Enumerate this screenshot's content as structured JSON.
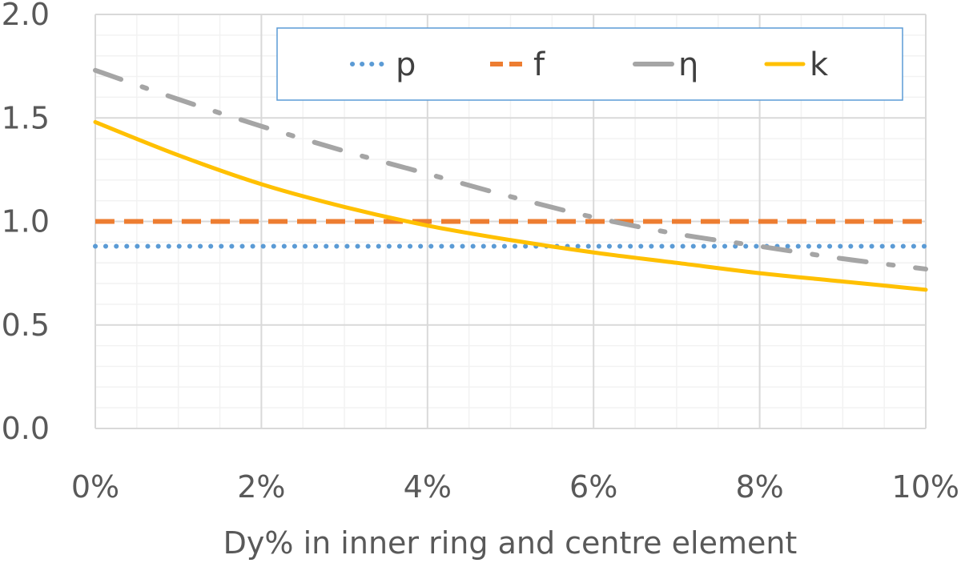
{
  "chart_data": {
    "type": "line",
    "title": "",
    "xlabel": "Dy% in inner ring and centre element",
    "ylabel": "",
    "xlim": [
      0,
      10
    ],
    "ylim": [
      0,
      2.0
    ],
    "x_ticks": [
      0,
      2,
      4,
      6,
      8,
      10
    ],
    "x_tick_labels": [
      "0%",
      "2%",
      "4%",
      "6%",
      "8%",
      "10%"
    ],
    "y_ticks": [
      0,
      0.5,
      1.0,
      1.5,
      2.0
    ],
    "y_tick_labels": [
      "0.0",
      "0.5",
      "1.0",
      "1.5",
      "2.0"
    ],
    "grid": true,
    "legend_position": "top",
    "series": [
      {
        "name": "p",
        "color": "#5B9BD5",
        "style": "dotted",
        "x": [
          0,
          2,
          4,
          6,
          8,
          10
        ],
        "y": [
          0.88,
          0.88,
          0.88,
          0.88,
          0.88,
          0.88
        ]
      },
      {
        "name": "f",
        "color": "#ED7D31",
        "style": "dashed",
        "x": [
          0,
          2,
          4,
          6,
          8,
          10
        ],
        "y": [
          1.0,
          1.0,
          1.0,
          1.0,
          1.0,
          1.0
        ]
      },
      {
        "name": "η",
        "color": "#A5A5A5",
        "style": "dash-dot",
        "x": [
          0,
          1,
          2,
          3,
          4,
          5,
          6,
          7,
          8,
          9,
          10
        ],
        "y": [
          1.73,
          1.59,
          1.46,
          1.34,
          1.23,
          1.12,
          1.02,
          0.94,
          0.88,
          0.82,
          0.77
        ]
      },
      {
        "name": "k",
        "color": "#FFC000",
        "style": "solid",
        "x": [
          0,
          1,
          2,
          3,
          4,
          5,
          6,
          7,
          8,
          9,
          10
        ],
        "y": [
          1.48,
          1.32,
          1.18,
          1.07,
          0.98,
          0.91,
          0.85,
          0.8,
          0.75,
          0.71,
          0.67
        ]
      }
    ]
  }
}
